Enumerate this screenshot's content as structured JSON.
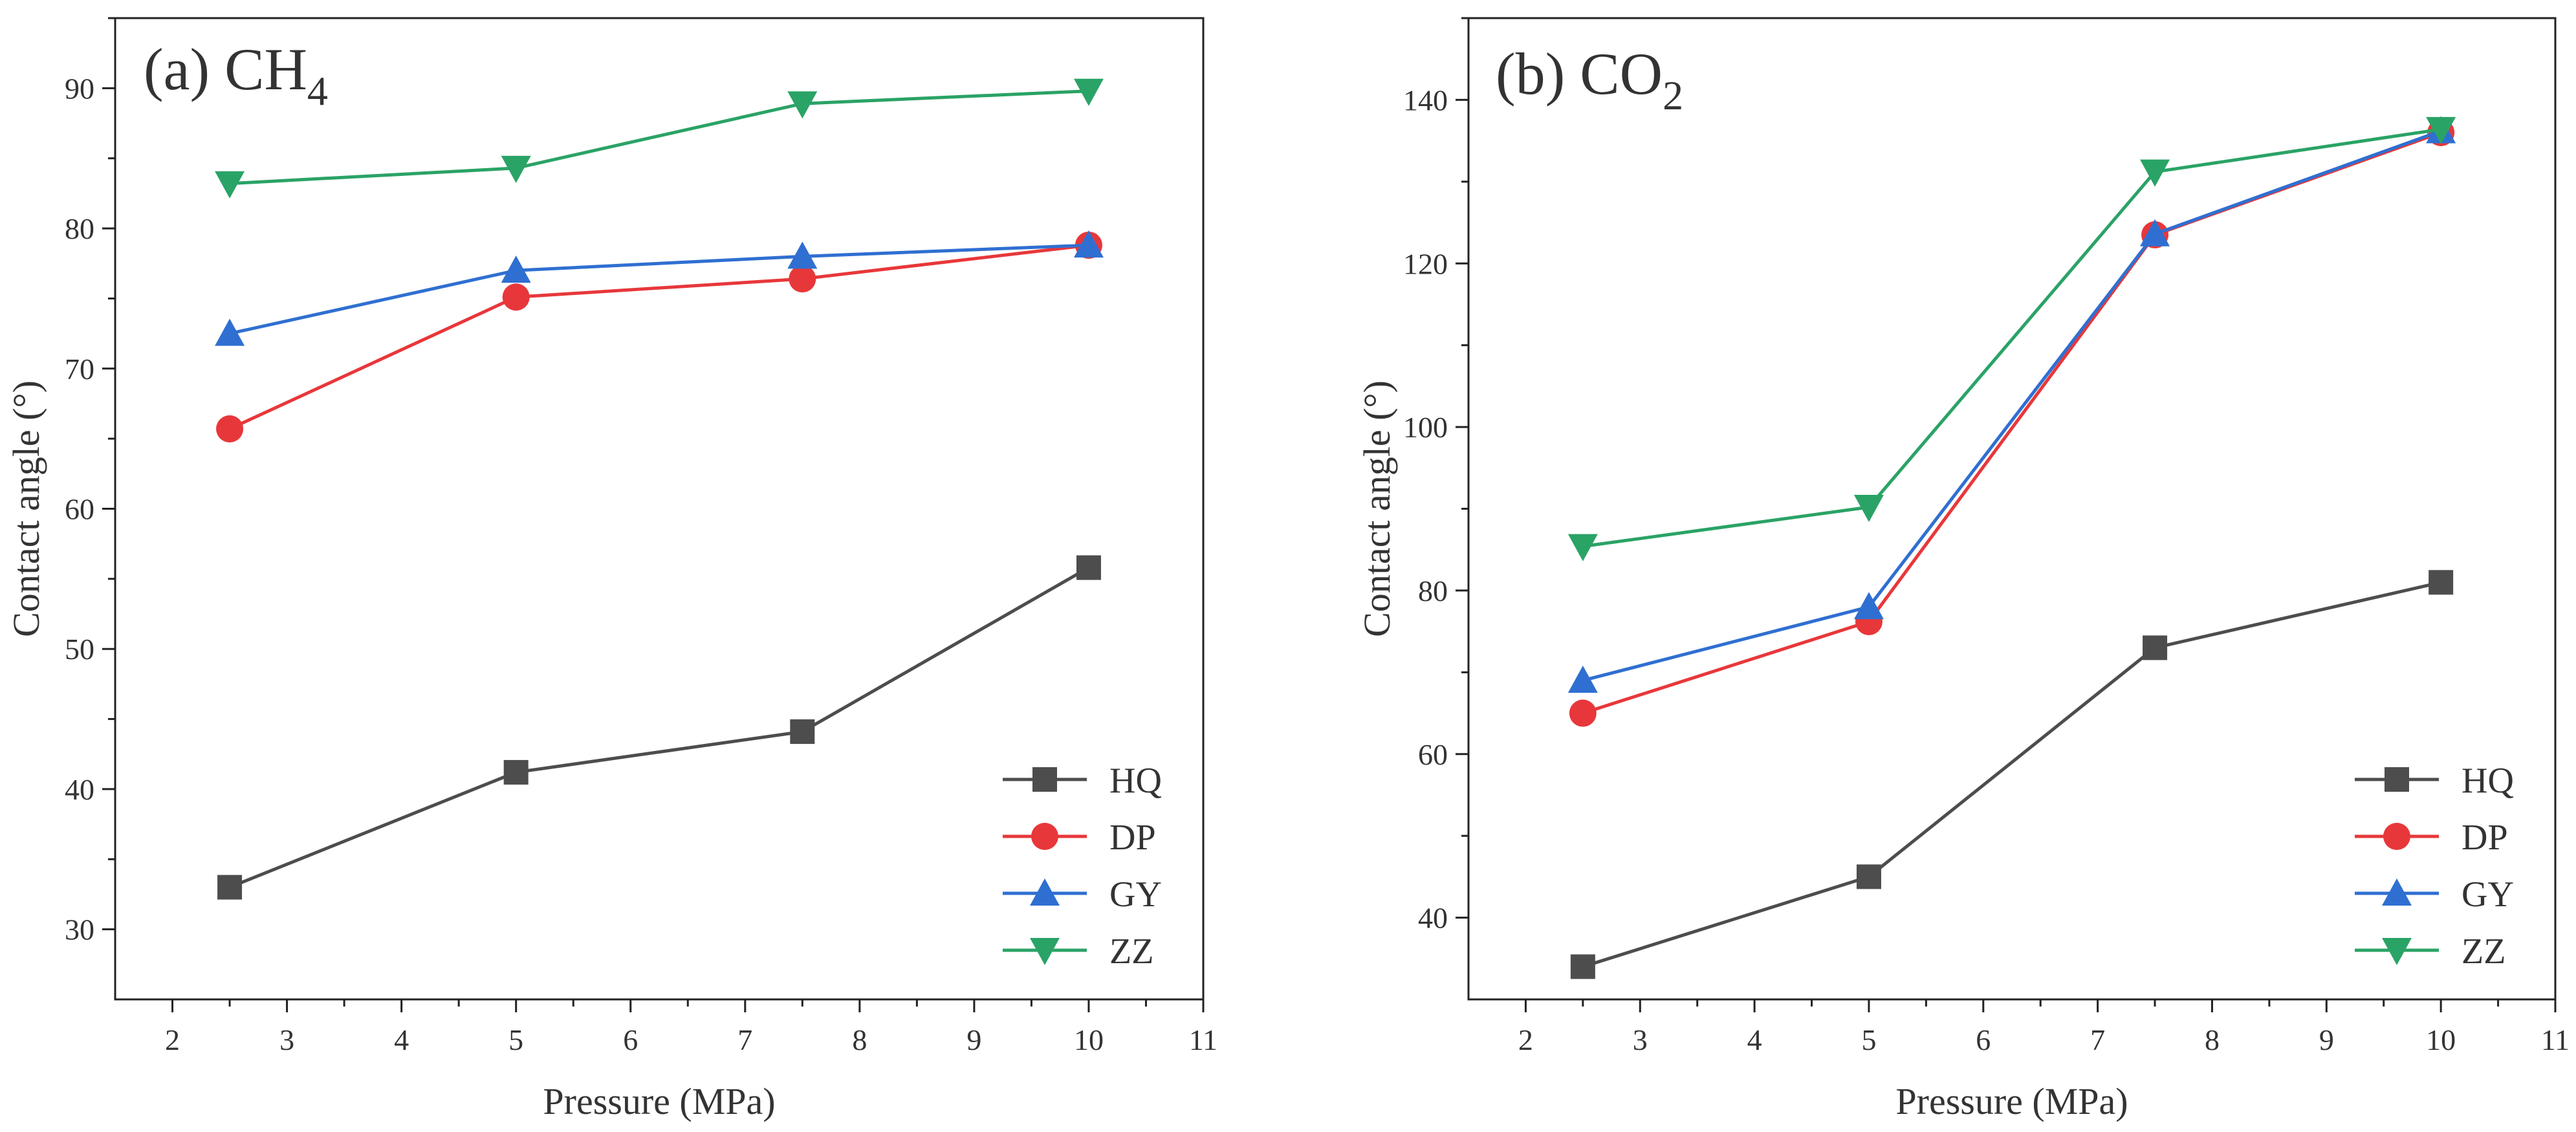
{
  "chart_data": [
    {
      "type": "line",
      "title_main": "(a) CH",
      "title_sub": "4",
      "xlabel": "Pressure (MPa)",
      "ylabel": "Contact angle (°)",
      "xlim": [
        1.5,
        11
      ],
      "ylim": [
        25,
        95
      ],
      "xticks": [
        2,
        3,
        4,
        5,
        6,
        7,
        8,
        9,
        10,
        11
      ],
      "yticks": [
        30,
        40,
        50,
        60,
        70,
        80,
        90
      ],
      "grid": false,
      "legend_position": "bottom-right",
      "x": [
        2.5,
        5,
        7.5,
        10
      ],
      "series": [
        {
          "name": "HQ",
          "marker": "square",
          "color": "#4d4d4d",
          "values": [
            33.0,
            41.2,
            44.1,
            55.8
          ]
        },
        {
          "name": "DP",
          "marker": "circle",
          "color": "#e8373a",
          "values": [
            65.7,
            75.1,
            76.4,
            78.8
          ]
        },
        {
          "name": "GY",
          "marker": "triangle-up",
          "color": "#2f6fd1",
          "values": [
            72.5,
            77.0,
            78.0,
            78.8
          ]
        },
        {
          "name": "ZZ",
          "marker": "triangle-down",
          "color": "#2aa366",
          "values": [
            83.2,
            84.3,
            88.9,
            89.8
          ]
        }
      ]
    },
    {
      "type": "line",
      "title_main": "(b) CO",
      "title_sub": "2",
      "xlabel": "Pressure (MPa)",
      "ylabel": "Contact angle (°)",
      "xlim": [
        1.5,
        11
      ],
      "ylim": [
        30,
        150
      ],
      "xticks": [
        2,
        3,
        4,
        5,
        6,
        7,
        8,
        9,
        10,
        11
      ],
      "yticks": [
        40,
        60,
        80,
        100,
        120,
        140
      ],
      "grid": false,
      "legend_position": "bottom-right",
      "x": [
        2.5,
        5,
        7.5,
        10
      ],
      "series": [
        {
          "name": "HQ",
          "marker": "square",
          "color": "#4d4d4d",
          "values": [
            34.0,
            45.0,
            73.0,
            81.0
          ]
        },
        {
          "name": "DP",
          "marker": "circle",
          "color": "#e8373a",
          "values": [
            65.0,
            76.2,
            123.5,
            136.0
          ]
        },
        {
          "name": "GY",
          "marker": "triangle-up",
          "color": "#2f6fd1",
          "values": [
            69.0,
            78.0,
            123.6,
            136.2
          ]
        },
        {
          "name": "ZZ",
          "marker": "triangle-down",
          "color": "#2aa366",
          "values": [
            85.4,
            90.2,
            131.2,
            136.4
          ]
        }
      ]
    }
  ]
}
